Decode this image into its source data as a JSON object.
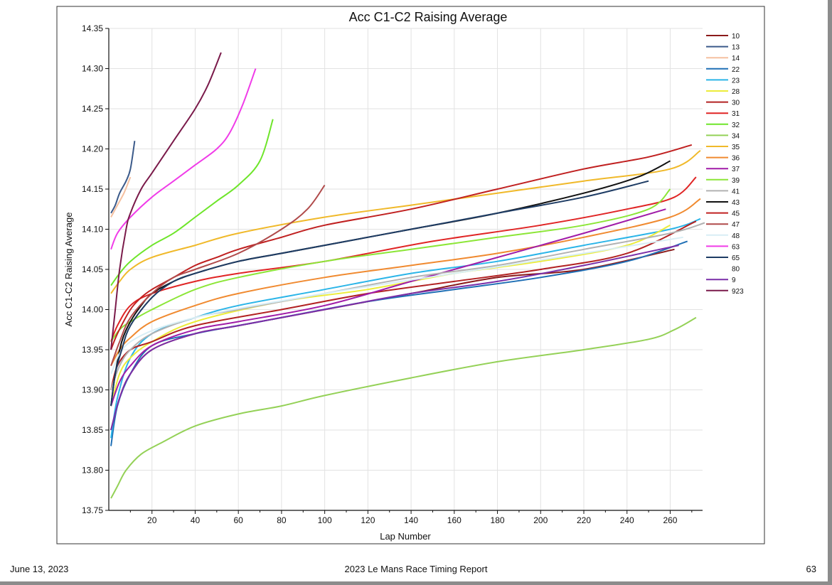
{
  "footer": {
    "date": "June 13, 2023",
    "report_title": "2023 Le Mans Race Timing Report",
    "page_number": "63"
  },
  "chart_data": {
    "type": "line",
    "title": "Acc C1-C2 Raising Average",
    "xlabel": "Lap Number",
    "ylabel": "Acc C1-C2 Raising Average",
    "xlim": [
      0,
      275
    ],
    "ylim": [
      13.75,
      14.35
    ],
    "xticks": [
      20,
      40,
      60,
      80,
      100,
      120,
      140,
      160,
      180,
      200,
      220,
      240,
      260
    ],
    "yticks": [
      "13.75",
      "13.80",
      "13.85",
      "13.90",
      "13.95",
      "14.00",
      "14.05",
      "14.10",
      "14.15",
      "14.20",
      "14.25",
      "14.30",
      "14.35"
    ],
    "grid": true,
    "legend_position": "right",
    "series": [
      {
        "name": "10",
        "color": "#8b1a1a",
        "points": [
          [
            1,
            13.85
          ],
          [
            5,
            13.89
          ],
          [
            10,
            13.92
          ],
          [
            20,
            13.95
          ],
          [
            40,
            13.97
          ],
          [
            60,
            13.98
          ],
          [
            100,
            14.0
          ],
          [
            140,
            14.02
          ],
          [
            180,
            14.04
          ],
          [
            220,
            14.05
          ],
          [
            262,
            14.075
          ]
        ]
      },
      {
        "name": "13",
        "color": "#3b5a8a",
        "points": [
          [
            1,
            14.12
          ],
          [
            3,
            14.13
          ],
          [
            5,
            14.145
          ],
          [
            8,
            14.16
          ],
          [
            10,
            14.175
          ],
          [
            12,
            14.21
          ]
        ]
      },
      {
        "name": "14",
        "color": "#f5c0a0",
        "points": [
          [
            1,
            14.115
          ],
          [
            4,
            14.13
          ],
          [
            7,
            14.145
          ],
          [
            10,
            14.165
          ]
        ]
      },
      {
        "name": "22",
        "color": "#1f6fb5",
        "points": [
          [
            1,
            13.83
          ],
          [
            4,
            13.88
          ],
          [
            10,
            13.92
          ],
          [
            20,
            13.955
          ],
          [
            40,
            13.97
          ],
          [
            70,
            13.985
          ],
          [
            120,
            14.01
          ],
          [
            160,
            14.025
          ],
          [
            200,
            14.04
          ],
          [
            240,
            14.06
          ],
          [
            268,
            14.085
          ]
        ]
      },
      {
        "name": "23",
        "color": "#2bb5e8",
        "points": [
          [
            1,
            13.84
          ],
          [
            4,
            13.89
          ],
          [
            10,
            13.94
          ],
          [
            20,
            13.97
          ],
          [
            40,
            13.99
          ],
          [
            60,
            14.005
          ],
          [
            100,
            14.025
          ],
          [
            140,
            14.045
          ],
          [
            180,
            14.06
          ],
          [
            220,
            14.08
          ],
          [
            260,
            14.1
          ],
          [
            274,
            14.113
          ]
        ]
      },
      {
        "name": "28",
        "color": "#ecec3a",
        "points": [
          [
            1,
            13.88
          ],
          [
            5,
            13.92
          ],
          [
            10,
            13.94
          ],
          [
            20,
            13.96
          ],
          [
            40,
            13.985
          ],
          [
            80,
            14.01
          ],
          [
            120,
            14.025
          ],
          [
            160,
            14.045
          ],
          [
            200,
            14.06
          ],
          [
            240,
            14.08
          ],
          [
            260,
            14.105
          ]
        ]
      },
      {
        "name": "30",
        "color": "#b22222",
        "points": [
          [
            1,
            13.9
          ],
          [
            4,
            13.93
          ],
          [
            10,
            13.95
          ],
          [
            20,
            13.96
          ],
          [
            40,
            13.98
          ],
          [
            80,
            14.0
          ],
          [
            120,
            14.02
          ],
          [
            160,
            14.035
          ],
          [
            200,
            14.05
          ],
          [
            240,
            14.07
          ],
          [
            272,
            14.11
          ]
        ]
      },
      {
        "name": "31",
        "color": "#e02525",
        "points": [
          [
            1,
            13.96
          ],
          [
            4,
            13.98
          ],
          [
            10,
            14.005
          ],
          [
            20,
            14.02
          ],
          [
            40,
            14.035
          ],
          [
            60,
            14.045
          ],
          [
            100,
            14.06
          ],
          [
            150,
            14.085
          ],
          [
            200,
            14.105
          ],
          [
            240,
            14.125
          ],
          [
            262,
            14.14
          ],
          [
            272,
            14.165
          ]
        ]
      },
      {
        "name": "32",
        "color": "#6ee52a",
        "points": [
          [
            1,
            14.03
          ],
          [
            5,
            14.045
          ],
          [
            10,
            14.06
          ],
          [
            20,
            14.08
          ],
          [
            30,
            14.095
          ],
          [
            40,
            14.115
          ],
          [
            50,
            14.135
          ],
          [
            60,
            14.155
          ],
          [
            70,
            14.185
          ],
          [
            76,
            14.237
          ]
        ]
      },
      {
        "name": "34",
        "color": "#94d157",
        "points": [
          [
            1,
            13.765
          ],
          [
            4,
            13.78
          ],
          [
            8,
            13.8
          ],
          [
            15,
            13.82
          ],
          [
            25,
            13.835
          ],
          [
            40,
            13.855
          ],
          [
            60,
            13.87
          ],
          [
            80,
            13.88
          ],
          [
            100,
            13.893
          ],
          [
            140,
            13.915
          ],
          [
            180,
            13.935
          ],
          [
            220,
            13.95
          ],
          [
            250,
            13.963
          ],
          [
            262,
            13.975
          ],
          [
            272,
            13.99
          ]
        ]
      },
      {
        "name": "35",
        "color": "#f0b92a",
        "points": [
          [
            1,
            14.02
          ],
          [
            5,
            14.035
          ],
          [
            10,
            14.05
          ],
          [
            20,
            14.065
          ],
          [
            40,
            14.08
          ],
          [
            60,
            14.095
          ],
          [
            100,
            14.115
          ],
          [
            140,
            14.13
          ],
          [
            180,
            14.145
          ],
          [
            220,
            14.16
          ],
          [
            260,
            14.175
          ],
          [
            274,
            14.198
          ]
        ]
      },
      {
        "name": "36",
        "color": "#f08a30",
        "points": [
          [
            1,
            13.93
          ],
          [
            5,
            13.95
          ],
          [
            10,
            13.965
          ],
          [
            20,
            13.985
          ],
          [
            40,
            14.005
          ],
          [
            60,
            14.02
          ],
          [
            100,
            14.04
          ],
          [
            140,
            14.055
          ],
          [
            180,
            14.07
          ],
          [
            220,
            14.09
          ],
          [
            260,
            14.115
          ],
          [
            274,
            14.138
          ]
        ]
      },
      {
        "name": "37",
        "color": "#a01ca8",
        "points": [
          [
            1,
            13.88
          ],
          [
            5,
            13.91
          ],
          [
            10,
            13.93
          ],
          [
            20,
            13.955
          ],
          [
            40,
            13.975
          ],
          [
            60,
            13.985
          ],
          [
            100,
            14.005
          ],
          [
            140,
            14.035
          ],
          [
            180,
            14.065
          ],
          [
            220,
            14.095
          ],
          [
            258,
            14.125
          ]
        ]
      },
      {
        "name": "39",
        "color": "#8ce637",
        "points": [
          [
            1,
            13.96
          ],
          [
            5,
            13.975
          ],
          [
            10,
            13.985
          ],
          [
            20,
            14.0
          ],
          [
            40,
            14.025
          ],
          [
            60,
            14.04
          ],
          [
            100,
            14.06
          ],
          [
            140,
            14.075
          ],
          [
            180,
            14.09
          ],
          [
            220,
            14.105
          ],
          [
            250,
            14.125
          ],
          [
            260,
            14.15
          ]
        ]
      },
      {
        "name": "41",
        "color": "#b2b2b2",
        "points": [
          [
            1,
            13.9
          ],
          [
            5,
            13.93
          ],
          [
            10,
            13.95
          ],
          [
            20,
            13.97
          ],
          [
            40,
            13.99
          ],
          [
            60,
            14.0
          ],
          [
            100,
            14.02
          ],
          [
            140,
            14.04
          ],
          [
            180,
            14.055
          ],
          [
            220,
            14.075
          ],
          [
            260,
            14.095
          ],
          [
            276,
            14.108
          ]
        ]
      },
      {
        "name": "43",
        "color": "#111111",
        "points": [
          [
            1,
            13.88
          ],
          [
            3,
            13.92
          ],
          [
            6,
            13.96
          ],
          [
            10,
            13.985
          ],
          [
            15,
            14.005
          ],
          [
            20,
            14.02
          ],
          [
            30,
            14.035
          ],
          [
            40,
            14.045
          ],
          [
            60,
            14.06
          ],
          [
            80,
            14.07
          ],
          [
            100,
            14.08
          ],
          [
            140,
            14.1
          ],
          [
            180,
            14.12
          ],
          [
            220,
            14.145
          ],
          [
            245,
            14.165
          ],
          [
            260,
            14.185
          ]
        ]
      },
      {
        "name": "45",
        "color": "#c02020",
        "points": [
          [
            1,
            13.95
          ],
          [
            4,
            13.97
          ],
          [
            10,
            14.0
          ],
          [
            15,
            14.015
          ],
          [
            20,
            14.025
          ],
          [
            30,
            14.04
          ],
          [
            40,
            14.055
          ],
          [
            50,
            14.065
          ],
          [
            60,
            14.075
          ],
          [
            80,
            14.09
          ],
          [
            100,
            14.105
          ],
          [
            140,
            14.125
          ],
          [
            180,
            14.15
          ],
          [
            220,
            14.175
          ],
          [
            250,
            14.19
          ],
          [
            270,
            14.205
          ]
        ]
      },
      {
        "name": "47",
        "color": "#b04a4a",
        "points": [
          [
            1,
            13.93
          ],
          [
            5,
            13.96
          ],
          [
            10,
            13.99
          ],
          [
            20,
            14.02
          ],
          [
            30,
            14.04
          ],
          [
            40,
            14.05
          ],
          [
            60,
            14.07
          ],
          [
            80,
            14.1
          ],
          [
            92,
            14.125
          ],
          [
            100,
            14.155
          ]
        ]
      },
      {
        "name": "48",
        "color": "#d8eef5",
        "points": [
          [
            1,
            13.92
          ],
          [
            10,
            13.96
          ],
          [
            40,
            13.99
          ],
          [
            100,
            14.02
          ],
          [
            160,
            14.045
          ],
          [
            220,
            14.07
          ],
          [
            266,
            14.09
          ]
        ]
      },
      {
        "name": "63",
        "color": "#f03ce8",
        "points": [
          [
            1,
            14.075
          ],
          [
            4,
            14.095
          ],
          [
            10,
            14.115
          ],
          [
            20,
            14.14
          ],
          [
            30,
            14.16
          ],
          [
            40,
            14.18
          ],
          [
            50,
            14.2
          ],
          [
            56,
            14.22
          ],
          [
            62,
            14.255
          ],
          [
            68,
            14.3
          ]
        ]
      },
      {
        "name": "65",
        "color": "#1e3c64",
        "points": [
          [
            1,
            13.88
          ],
          [
            3,
            13.92
          ],
          [
            6,
            13.95
          ],
          [
            10,
            13.98
          ],
          [
            20,
            14.015
          ],
          [
            30,
            14.035
          ],
          [
            40,
            14.045
          ],
          [
            60,
            14.06
          ],
          [
            80,
            14.07
          ],
          [
            100,
            14.08
          ],
          [
            140,
            14.1
          ],
          [
            180,
            14.12
          ],
          [
            220,
            14.14
          ],
          [
            250,
            14.16
          ]
        ]
      },
      {
        "name": "80",
        "color": "#ffffff",
        "points": []
      },
      {
        "name": "9",
        "color": "#7a2ea8",
        "points": [
          [
            1,
            13.85
          ],
          [
            5,
            13.89
          ],
          [
            10,
            13.92
          ],
          [
            20,
            13.95
          ],
          [
            40,
            13.97
          ],
          [
            60,
            13.98
          ],
          [
            100,
            14.0
          ],
          [
            140,
            14.02
          ],
          [
            180,
            14.035
          ],
          [
            220,
            14.055
          ],
          [
            264,
            14.08
          ]
        ]
      },
      {
        "name": "923",
        "color": "#7a1a4a",
        "points": [
          [
            1,
            13.95
          ],
          [
            3,
            14.0
          ],
          [
            5,
            14.05
          ],
          [
            8,
            14.1
          ],
          [
            10,
            14.12
          ],
          [
            15,
            14.15
          ],
          [
            20,
            14.17
          ],
          [
            30,
            14.21
          ],
          [
            40,
            14.25
          ],
          [
            46,
            14.28
          ],
          [
            52,
            14.32
          ]
        ]
      }
    ]
  }
}
